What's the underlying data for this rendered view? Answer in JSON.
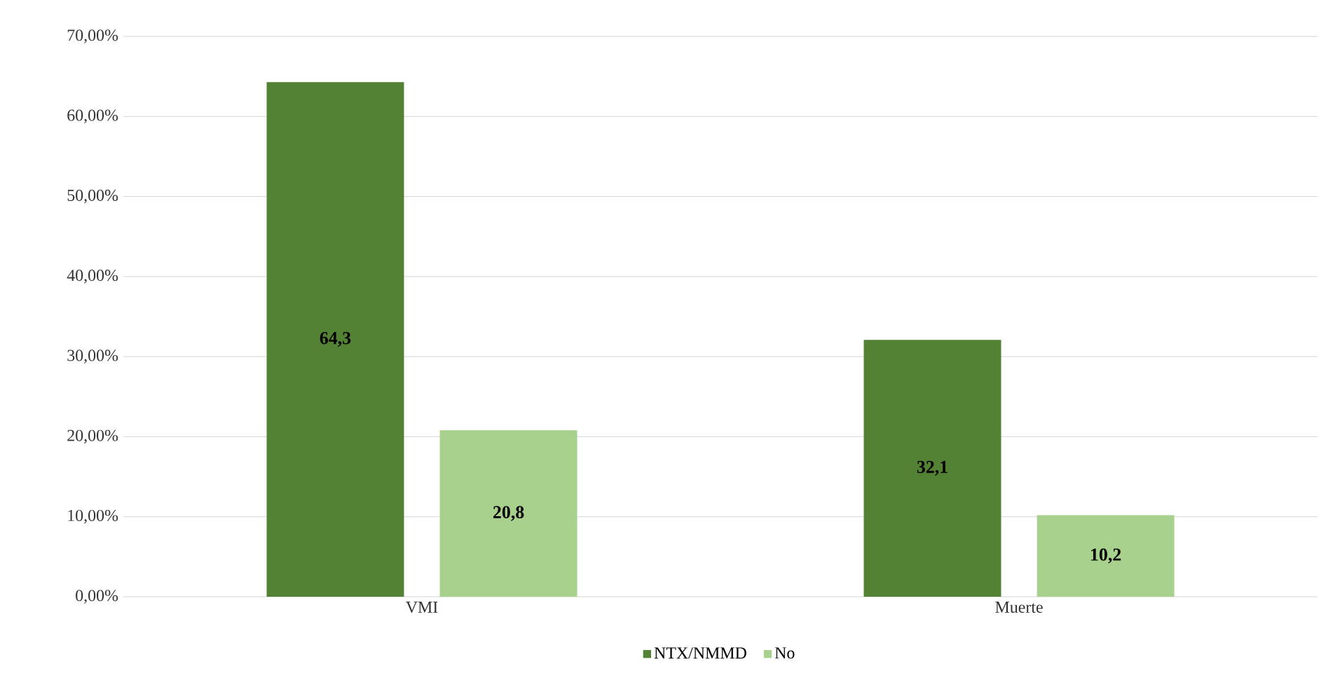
{
  "chart_data": {
    "type": "bar",
    "categories": [
      "VMI",
      "Muerte"
    ],
    "series": [
      {
        "name": "NTX/NMMD",
        "color": "#548235",
        "values": [
          64.3,
          32.1
        ],
        "value_labels": [
          "64,3",
          "32,1"
        ]
      },
      {
        "name": "No",
        "color": "#a9d18e",
        "values": [
          20.8,
          10.2
        ],
        "value_labels": [
          "20,8",
          "10,2"
        ]
      }
    ],
    "ylim": [
      0,
      70
    ],
    "yticks": [
      {
        "value": 0,
        "label": "0,00%"
      },
      {
        "value": 10,
        "label": "10,00%"
      },
      {
        "value": 20,
        "label": "20,00%"
      },
      {
        "value": 30,
        "label": "30,00%"
      },
      {
        "value": 40,
        "label": "40,00%"
      },
      {
        "value": 50,
        "label": "50,00%"
      },
      {
        "value": 60,
        "label": "60,00%"
      },
      {
        "value": 70,
        "label": "70,00%"
      }
    ],
    "grid": "y",
    "legend": "bottom"
  }
}
